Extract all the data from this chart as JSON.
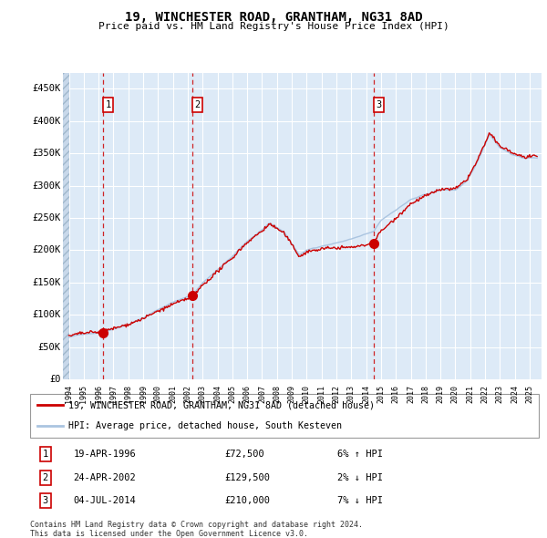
{
  "title": "19, WINCHESTER ROAD, GRANTHAM, NG31 8AD",
  "subtitle": "Price paid vs. HM Land Registry's House Price Index (HPI)",
  "sale_prices": [
    72500,
    129500,
    210000
  ],
  "sale_labels": [
    "1",
    "2",
    "3"
  ],
  "sale_date_strs": [
    "19-APR-1996",
    "24-APR-2002",
    "04-JUL-2014"
  ],
  "sale_price_strs": [
    "£72,500",
    "£129,500",
    "£210,000"
  ],
  "sale_hpi_strs": [
    "6% ↑ HPI",
    "2% ↓ HPI",
    "7% ↓ HPI"
  ],
  "legend_line1": "19, WINCHESTER ROAD, GRANTHAM, NG31 8AD (detached house)",
  "legend_line2": "HPI: Average price, detached house, South Kesteven",
  "footer1": "Contains HM Land Registry data © Crown copyright and database right 2024.",
  "footer2": "This data is licensed under the Open Government Licence v3.0.",
  "hpi_line_color": "#aac4e0",
  "price_line_color": "#cc0000",
  "sale_marker_color": "#cc0000",
  "vline_color": "#cc0000",
  "bg_color": "#ddeaf7",
  "hatch_bg_color": "#c8d8ea",
  "grid_color": "#ffffff",
  "ylim": [
    0,
    475000
  ],
  "yticks": [
    0,
    50000,
    100000,
    150000,
    200000,
    250000,
    300000,
    350000,
    400000,
    450000
  ],
  "ytick_labels": [
    "£0",
    "£50K",
    "£100K",
    "£150K",
    "£200K",
    "£250K",
    "£300K",
    "£350K",
    "£400K",
    "£450K"
  ],
  "sale_year_nums": [
    1996.3,
    2002.32,
    2014.51
  ],
  "xlim_left": 1993.6,
  "xlim_right": 2025.8
}
